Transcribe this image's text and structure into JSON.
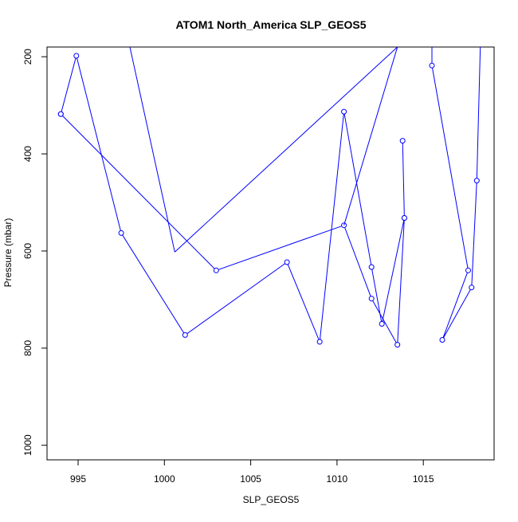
{
  "chart_data": {
    "type": "line",
    "title": "ATOM1 North_America SLP_GEOS5",
    "xlabel": "SLP_GEOS5",
    "ylabel": "Pressure (mbar)",
    "xlim": [
      993.2,
      1019.1
    ],
    "ylim": [
      1030,
      180
    ],
    "y_reversed": true,
    "x_ticks": [
      995,
      1000,
      1005,
      1010,
      1015
    ],
    "y_ticks": [
      200,
      400,
      600,
      800,
      1000
    ],
    "grid": false,
    "legend": "none",
    "series_color": "#0000ff",
    "series": [
      {
        "x": [
          994.0,
          994.9,
          997.5,
          1001.2,
          1007.1,
          1009.0,
          1010.4,
          1012.0,
          1012.6,
          1013.9,
          1013.5,
          1012.0,
          1010.4,
          1003.0,
          994.0
        ],
        "y": [
          318,
          198,
          563,
          773,
          623,
          787,
          313,
          633,
          750,
          532,
          793,
          698,
          547,
          640,
          318
        ],
        "points": true
      },
      {
        "x": [
          1013.8,
          1013.9
        ],
        "y": [
          373,
          532
        ],
        "points": true
      },
      {
        "x": [
          1000.6,
          1013.5
        ],
        "y": [
          602,
          180
        ],
        "points": false,
        "open_end": true
      },
      {
        "x": [
          998.0,
          1000.6
        ],
        "y": [
          180,
          602
        ],
        "points": false,
        "open_start": true
      },
      {
        "x": [
          1010.4,
          1013.5
        ],
        "y": [
          547,
          180
        ],
        "points": false,
        "open_end": true
      },
      {
        "x": [
          1015.5,
          1015.5,
          1017.6,
          1016.1,
          1017.8,
          1018.1,
          1018.3
        ],
        "y": [
          180,
          218,
          640,
          783,
          675,
          455,
          180
        ],
        "points": true,
        "open_start": true,
        "open_end": true
      }
    ]
  }
}
